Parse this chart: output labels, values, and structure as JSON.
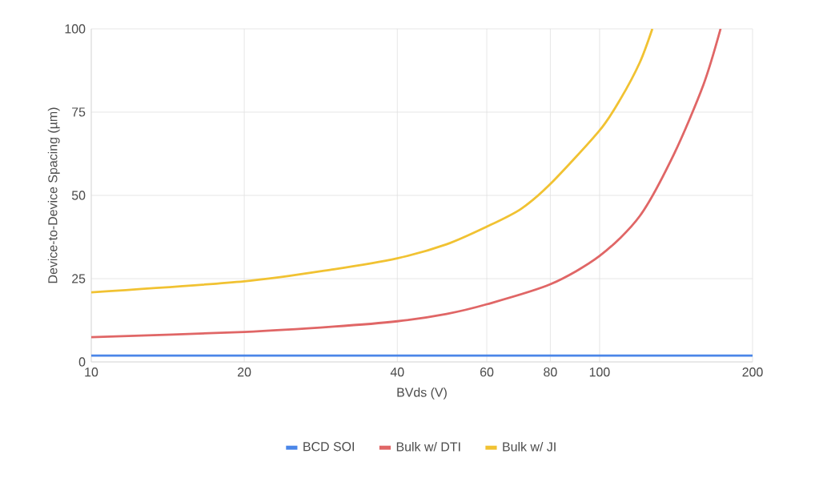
{
  "chart_data": {
    "type": "line",
    "xlabel": "BVds (V)",
    "ylabel": "Device-to-Device Spacing (µm)",
    "log": "x",
    "xlim": [
      10,
      200
    ],
    "xticks": [
      10,
      20,
      40,
      60,
      80,
      100,
      200
    ],
    "ylim": [
      0,
      100
    ],
    "yticks": [
      0,
      25,
      50,
      75,
      100
    ],
    "grid": true,
    "legend": "bottom",
    "marker": "none",
    "line_style": "solid",
    "series": [
      {
        "name": "BCD SOI",
        "color": "#4a86e8",
        "x": [
          10,
          200
        ],
        "values": [
          1.9,
          1.9
        ]
      },
      {
        "name": "Bulk w/ DTI",
        "color": "#e06666",
        "x": [
          10,
          20,
          30,
          40,
          50,
          60,
          80,
          100,
          120,
          140,
          160,
          173
        ],
        "values": [
          7.4,
          9.0,
          10.6,
          12.2,
          14.4,
          17.3,
          23.3,
          31.8,
          43.8,
          62.3,
          83.1,
          100
        ]
      },
      {
        "name": "Bulk w/ JI",
        "color": "#f1c232",
        "x": [
          10,
          20,
          30,
          40,
          50,
          60,
          70,
          80,
          100,
          110,
          120,
          127
        ],
        "values": [
          20.9,
          24.2,
          27.8,
          31.1,
          35.3,
          40.6,
          45.9,
          53.4,
          69.5,
          79.0,
          89.9,
          100
        ]
      }
    ]
  }
}
